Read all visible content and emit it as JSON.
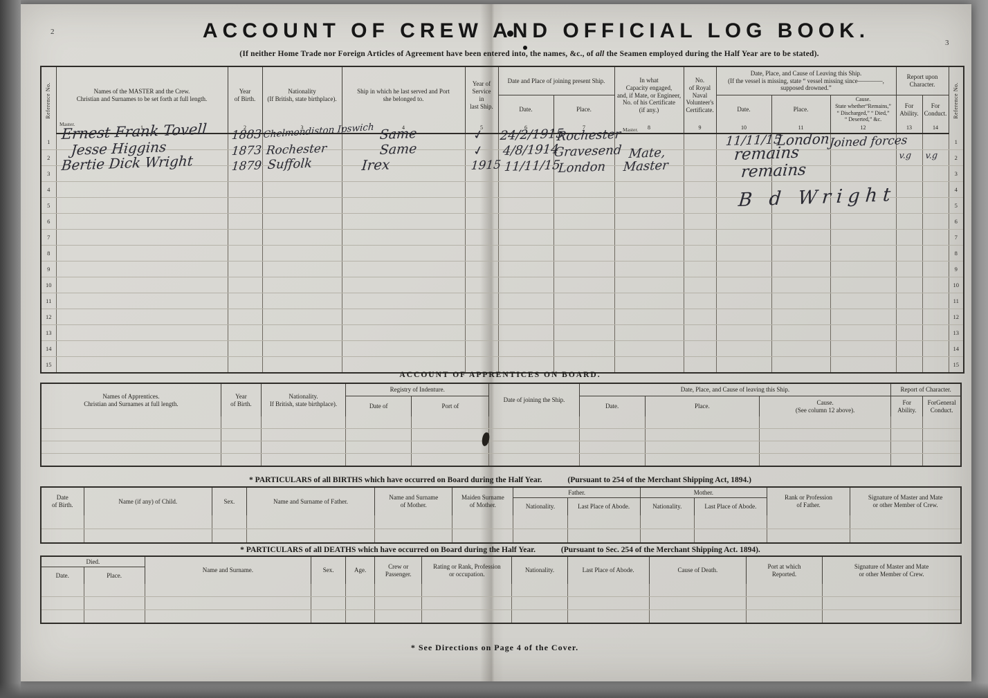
{
  "page": {
    "left_page_number": "2",
    "right_page_number": "3",
    "title": "ACCOUNT  OF  CREW  AND  OFFICIAL  LOG  BOOK.",
    "subtitle_pre": "(If neither Home Trade nor Foreign Articles of Agreement have been entered into, the names, &c., of ",
    "subtitle_em": "all",
    "subtitle_post": " the Seamen employed during the Half Year are to be stated).",
    "footnote": "* See Directions on Page 4 of the Cover."
  },
  "crew": {
    "ref_label": "Reference No.",
    "headers": {
      "names": "Names of the MASTER and the Crew.\nChristian and Surnames to be set forth at full length.",
      "year_birth": "Year\nof Birth.",
      "nationality": "Nationality\n(If British, state birthplace).",
      "last_ship": "Ship in which he last served and Port\nshe belonged to.",
      "year_service": "Year of Service\nin\nlast Ship.",
      "joining_group": "Date and Place of joining present Ship.",
      "join_date": "Date.",
      "join_place": "Place.",
      "capacity": "In what\nCapacity engaged,\nand, if Mate, or Engineer,\nNo. of his Certificate\n(if any.)",
      "rnv": "No.\nof Royal\nNaval\nVolunteer's\nCertificate.",
      "leaving_group": "Date, Place, and Cause of Leaving this Ship.\n(If the vessel is missing, state “ vessel missing since————,\nsupposed drowned.”",
      "leave_date": "Date.",
      "leave_place": "Place.",
      "leave_cause": "Cause.\nState whether“Remains,”\n“ Discharged,” “ Died,”\n“ Deserted,” &c.",
      "report_group": "Report upon\nCharacter.",
      "ability": "For\nAbility.",
      "conduct": "For\nConduct."
    },
    "col_nums": [
      "1",
      "2",
      "3",
      "4",
      "5",
      "6",
      "7",
      "8",
      "9",
      "10",
      "11",
      "12",
      "13",
      "14"
    ],
    "row_numbers": [
      "1",
      "2",
      "3",
      "4",
      "5",
      "6",
      "7",
      "8",
      "9",
      "10",
      "11",
      "12",
      "13",
      "14",
      "15"
    ],
    "master_printed": "Master.",
    "entries": {
      "row1": {
        "name": "Ernest Frank Tovell",
        "birth": "1883",
        "nationality": "Chelmondiston Ipswich",
        "ship": "Same",
        "service": "✓",
        "join_date": "24/2/1915",
        "join_place": "Rochester",
        "leave_date": "11/11/15",
        "leave_place": "London ,",
        "leave_cause": "Joined forces"
      },
      "row2": {
        "name": "Jesse Higgins",
        "birth": "1873",
        "nationality": "Rochester",
        "ship": "Same",
        "service": "✓",
        "join_date": "4/8/1914",
        "join_place": "Gravesend",
        "capacity": "Mate,",
        "leave_note": "remains",
        "ability": "v.g",
        "conduct": "v.g"
      },
      "row3": {
        "name": "Bertie Dick Wright",
        "birth": "1879",
        "nationality": "Suffolk",
        "ship": "Irex",
        "service": "1915",
        "join_date": "11/11/15",
        "join_place": "London",
        "capacity": "Master",
        "leave_note": "remains"
      },
      "signature": "B d Wright"
    }
  },
  "apprentices": {
    "title": "ACCOUNT  OF  APPRENTICES  ON  BOARD.",
    "headers": {
      "names": "Names of Apprentices.\nChristian and Surnames at full length.",
      "year_birth": "Year\nof Birth.",
      "nationality": "Nationality.\nIf British, state birthplace).",
      "registry_group": "Registry of Indenture.",
      "registry_date": "Date of",
      "registry_port": "Port of",
      "joining": "Date of joining the Ship.",
      "leaving_group": "Date, Place, and Cause of leaving this Ship.",
      "leave_date": "Date.",
      "leave_place": "Place.",
      "leave_cause": "Cause.\n(See column 12 above).",
      "report_group": "Report of Character.",
      "ability": "For\nAbility.",
      "conduct": "ForGeneral\nConduct."
    }
  },
  "births": {
    "title": "* PARTICULARS  of  all  BIRTHS  which  have  occurred  on  Board  during  the  Half  Year.",
    "pursuant": "(Pursuant  to  254  of  the  Merchant  Shipping  Act,  1894.)",
    "headers": {
      "date": "Date\nof Birth.",
      "child": "Name (if any) of Child.",
      "sex": "Sex.",
      "father_name": "Name and Surname of Father.",
      "mother_name": "Name and Surname\nof Mother.",
      "maiden": "Maiden Surname\nof Mother.",
      "father_group": "Father.",
      "father_nat": "Nationality.",
      "father_abode": "Last Place of Abode.",
      "mother_group": "Mother.",
      "mother_nat": "Nationality.",
      "mother_abode": "Last Place of Abode.",
      "rank": "Rank or Profession\nof Father.",
      "signature": "Signature of Master and Mate\nor other Member of Crew."
    }
  },
  "deaths": {
    "title": "* PARTICULARS  of  all  DEATHS  which  have  occurred  on  Board  during  the  Half  Year.",
    "pursuant": "(Pursuant  to  Sec.  254  of  the  Merchant  Shipping  Act.  1894).",
    "headers": {
      "died_group": "Died.",
      "date": "Date.",
      "place": "Place.",
      "name": "Name and Surname.",
      "sex": "Sex.",
      "age": "Age.",
      "crew": "Crew or\nPassenger.",
      "rating": "Rating or Rank, Profession\nor occupation.",
      "nationality": "Nationality.",
      "abode": "Last Place of Abode.",
      "cause": "Cause of Death.",
      "port": "Port at which\nReported.",
      "signature": "Signature of Master and Mate\nor other Member of Crew."
    }
  }
}
